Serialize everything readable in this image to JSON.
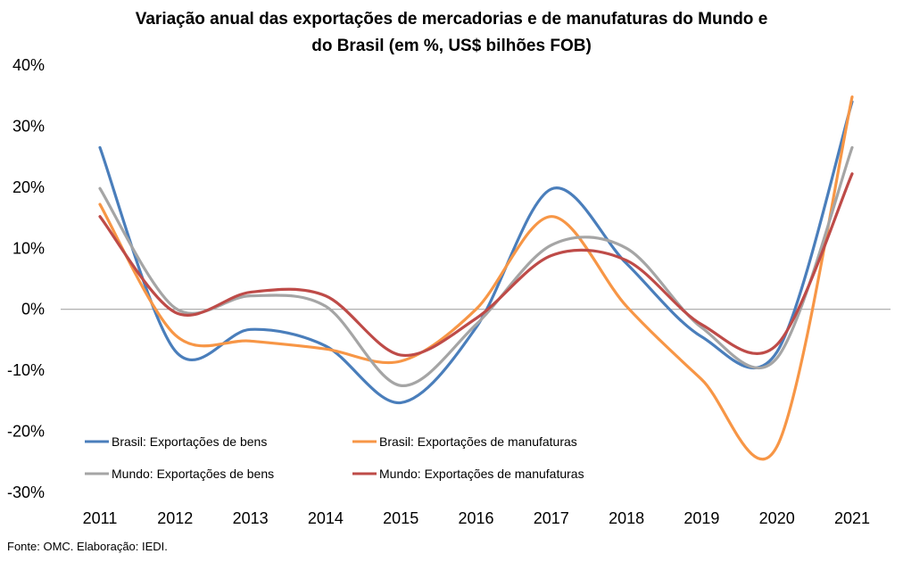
{
  "chart_data": {
    "type": "line",
    "title_line1": "Variação anual das exportações de mercadorias e de manufaturas do Mundo e",
    "title_line2": "do Brasil (em %, US$ bilhões FOB)",
    "categories": [
      "2011",
      "2012",
      "2013",
      "2014",
      "2015",
      "2016",
      "2017",
      "2018",
      "2019",
      "2020",
      "2021"
    ],
    "y_ticks": [
      "40%",
      "30%",
      "20%",
      "10%",
      "0%",
      "-10%",
      "-20%",
      "-30%"
    ],
    "ylim": [
      -30,
      40
    ],
    "grid": false,
    "legend_position": "bottom-inside",
    "series": [
      {
        "name": "Brasil: Exportações de bens",
        "color": "#4a7ebb",
        "values": [
          26.5,
          -6.8,
          -3.3,
          -6.0,
          -15.3,
          -3.0,
          19.7,
          7.5,
          -4.5,
          -7.0,
          34.0
        ]
      },
      {
        "name": "Brasil: Exportações de manufaturas",
        "color": "#f79646",
        "values": [
          17.2,
          -4.2,
          -5.2,
          -6.5,
          -8.5,
          0.0,
          15.2,
          0.5,
          -11.5,
          -22.5,
          34.8
        ]
      },
      {
        "name": "Mundo: Exportações de bens",
        "color": "#a5a5a5",
        "values": [
          19.8,
          0.2,
          2.2,
          0.5,
          -12.5,
          -2.5,
          10.5,
          10.0,
          -3.0,
          -8.0,
          26.5
        ]
      },
      {
        "name": "Mundo: Exportações de manufaturas",
        "color": "#be4b48",
        "values": [
          15.2,
          -0.5,
          2.8,
          2.2,
          -7.5,
          -1.5,
          8.8,
          8.0,
          -2.5,
          -5.8,
          22.2
        ]
      }
    ]
  },
  "source_text": "Fonte: OMC. Elaboração: IEDI."
}
